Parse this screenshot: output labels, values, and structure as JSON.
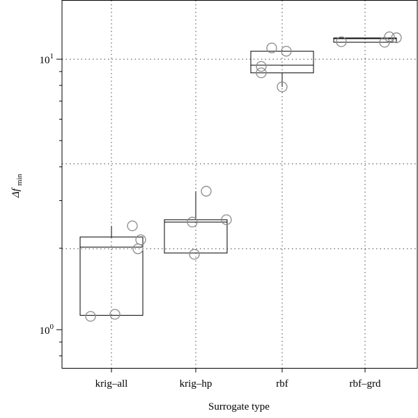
{
  "chart_data": {
    "type": "box",
    "xlabel": "Surrogate type",
    "ylabel_main": "Δf",
    "ylabel_sub": "min",
    "y_scale": "log10",
    "ylim": [
      0.72,
      16.5
    ],
    "y_tick_labels": [
      {
        "value": 1,
        "base": "10",
        "exp": "0"
      },
      {
        "value": 10,
        "base": "10",
        "exp": "1"
      }
    ],
    "y_grid_values": [
      1.99,
      4.1,
      10
    ],
    "categories": [
      "krig–all",
      "krig–hp",
      "rbf",
      "rbf–grd"
    ],
    "boxes": [
      {
        "category": "krig–all",
        "q1": 1.13,
        "median": 2.02,
        "q3": 2.2,
        "whisker_low": 1.13,
        "whisker_high": 2.42
      },
      {
        "category": "krig–hp",
        "q1": 1.92,
        "median": 2.5,
        "q3": 2.55,
        "whisker_low": 1.92,
        "whisker_high": 3.25
      },
      {
        "category": "rbf",
        "q1": 8.9,
        "median": 9.5,
        "q3": 10.7,
        "whisker_low": 7.9,
        "whisker_high": 10.7
      },
      {
        "category": "rbf–grd",
        "q1": 11.55,
        "median": 11.9,
        "q3": 11.98,
        "whisker_low": 11.55,
        "whisker_high": 11.98
      }
    ],
    "points": [
      {
        "category": "krig–all",
        "x_offset": -0.3,
        "y": 1.12
      },
      {
        "category": "krig–all",
        "x_offset": 0.05,
        "y": 1.14
      },
      {
        "category": "krig–all",
        "x_offset": 0.3,
        "y": 2.42
      },
      {
        "category": "krig–all",
        "x_offset": 0.42,
        "y": 2.15
      },
      {
        "category": "krig–all",
        "x_offset": 0.38,
        "y": 1.99
      },
      {
        "category": "krig–hp",
        "x_offset": -0.05,
        "y": 2.5
      },
      {
        "category": "krig–hp",
        "x_offset": -0.02,
        "y": 1.9
      },
      {
        "category": "krig–hp",
        "x_offset": 0.15,
        "y": 3.25
      },
      {
        "category": "krig–hp",
        "x_offset": 0.44,
        "y": 2.55
      },
      {
        "category": "rbf",
        "x_offset": -0.15,
        "y": 11.0
      },
      {
        "category": "rbf",
        "x_offset": 0.06,
        "y": 10.7
      },
      {
        "category": "rbf",
        "x_offset": -0.3,
        "y": 9.4
      },
      {
        "category": "rbf",
        "x_offset": -0.3,
        "y": 8.9
      },
      {
        "category": "rbf",
        "x_offset": 0.0,
        "y": 7.9
      },
      {
        "category": "rbf–grd",
        "x_offset": -0.34,
        "y": 11.6
      },
      {
        "category": "rbf–grd",
        "x_offset": 0.28,
        "y": 11.55
      },
      {
        "category": "rbf–grd",
        "x_offset": 0.35,
        "y": 12.1
      },
      {
        "category": "rbf–grd",
        "x_offset": 0.45,
        "y": 12.0
      }
    ],
    "grid": true,
    "legend": "none"
  }
}
